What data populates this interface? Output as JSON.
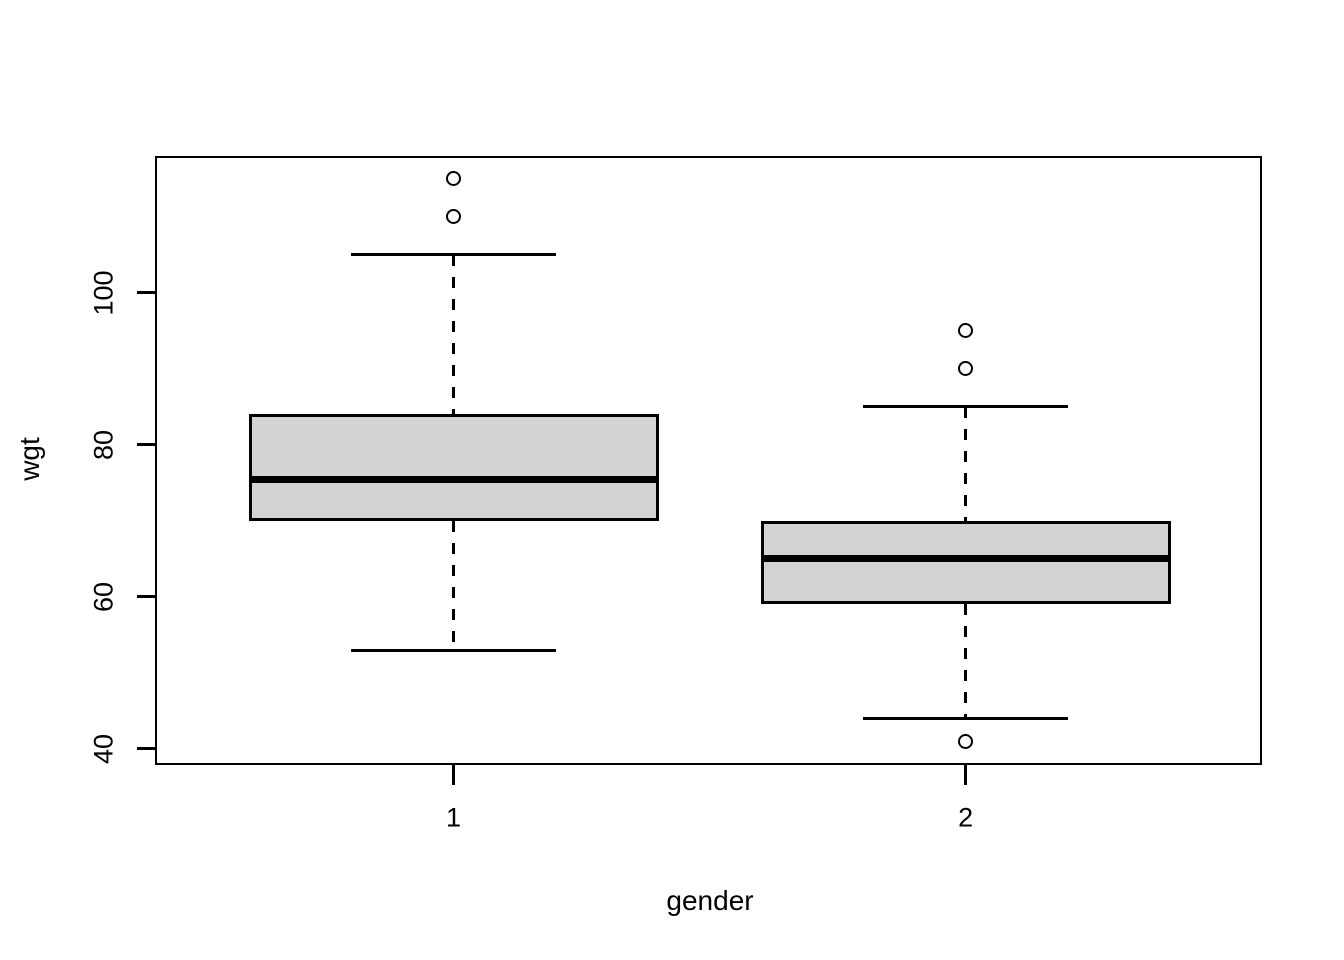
{
  "chart_data": {
    "type": "boxplot",
    "title": "",
    "xlabel": "gender",
    "ylabel": "wgt",
    "categories": [
      "1",
      "2"
    ],
    "y_ticks": [
      40,
      60,
      80,
      100
    ],
    "ylim": [
      37.9,
      118.0
    ],
    "grid": false,
    "legend": "none",
    "background_color": "#ffffff",
    "box_fill_color": "#d3d3d3",
    "line_color": "#000000",
    "series": [
      {
        "category": "1",
        "lower_whisker": 53,
        "q1": 70,
        "median": 75.5,
        "q3": 84,
        "upper_whisker": 105,
        "outliers": [
          110,
          115
        ]
      },
      {
        "category": "2",
        "lower_whisker": 44,
        "q1": 59,
        "median": 65,
        "q3": 70,
        "upper_whisker": 85,
        "outliers": [
          41,
          90,
          95
        ]
      }
    ]
  }
}
